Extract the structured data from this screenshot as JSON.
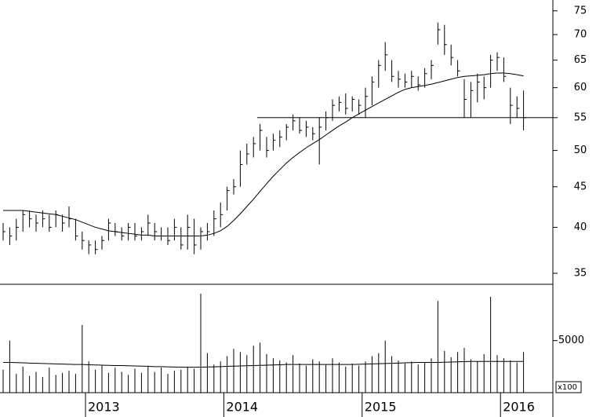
{
  "chart_data": [
    {
      "type": "ohlc",
      "color": "#000000",
      "log_scale": true,
      "categories": [
        null,
        null,
        null,
        null,
        null,
        null,
        null,
        null,
        null,
        null,
        null,
        null,
        null,
        "2013",
        null,
        null,
        null,
        null,
        null,
        null,
        null,
        null,
        null,
        null,
        null,
        null,
        null,
        null,
        null,
        null,
        null,
        null,
        null,
        null,
        "2014",
        null,
        null,
        null,
        null,
        null,
        null,
        null,
        null,
        null,
        null,
        null,
        null,
        null,
        null,
        null,
        null,
        null,
        null,
        null,
        null,
        "2015",
        null,
        null,
        null,
        null,
        null,
        null,
        null,
        null,
        null,
        null,
        null,
        null,
        null,
        null,
        null,
        null,
        null,
        null,
        null,
        null,
        "2016",
        null,
        null,
        null
      ],
      "high": [
        40.5,
        40,
        41,
        42,
        42,
        41.5,
        42,
        41.5,
        42,
        41.5,
        42.5,
        41,
        39.5,
        38.5,
        38.5,
        39,
        41,
        40.5,
        40,
        40.5,
        40.5,
        40,
        41.5,
        40.5,
        40,
        40,
        41,
        40,
        41.5,
        41,
        40,
        40.5,
        42,
        43,
        45,
        46,
        50,
        51,
        52,
        54,
        52,
        52.5,
        53,
        54,
        55.5,
        55,
        54.5,
        53.5,
        55,
        56,
        58,
        58.5,
        59,
        58.5,
        58,
        60,
        62,
        65,
        68.5,
        65,
        63,
        62.5,
        63,
        62,
        63.5,
        65,
        72.5,
        72,
        68,
        65,
        61.5,
        61,
        62.5,
        62,
        66,
        66.5,
        65.5,
        60,
        58.5,
        59.5
      ],
      "low": [
        38.5,
        38,
        38.5,
        39.5,
        40,
        39.5,
        40,
        39.5,
        40,
        39.5,
        40,
        38.5,
        37.5,
        37,
        37,
        37.5,
        38.5,
        39,
        38.5,
        38.5,
        38.5,
        38.5,
        39,
        38.5,
        38.5,
        38,
        38.5,
        37.5,
        37.5,
        37,
        37.5,
        38.5,
        39,
        40,
        42,
        44,
        45,
        48,
        49,
        50,
        49,
        50,
        50.5,
        51.5,
        53,
        52.5,
        52,
        51.5,
        48,
        53,
        54.5,
        56,
        55.5,
        56,
        55.5,
        55,
        57,
        60,
        63,
        61,
        60,
        60,
        60,
        59.5,
        60,
        61.5,
        68,
        66,
        64,
        62,
        55,
        55,
        57.5,
        58,
        60,
        63,
        61,
        54,
        55,
        53
      ],
      "close": [
        39.5,
        39,
        40,
        41.5,
        41,
        40.5,
        41,
        40,
        41.5,
        40.5,
        41,
        39,
        38.5,
        38,
        37.5,
        38.5,
        40.5,
        39.5,
        39,
        40,
        39,
        39.5,
        40.5,
        39.5,
        39,
        38.5,
        40,
        38,
        40,
        38,
        39.5,
        39.5,
        41,
        41.5,
        44.5,
        45,
        48,
        49.5,
        51,
        53,
        50,
        51.5,
        52,
        53.5,
        54.5,
        53,
        53.5,
        52.5,
        53.5,
        55,
        57,
        57.5,
        56.5,
        58,
        57,
        58.5,
        61,
        64,
        66,
        62,
        61.5,
        61,
        62,
        60.5,
        62.5,
        64,
        71,
        68,
        65.5,
        63,
        58,
        59.5,
        61,
        60,
        65,
        65.5,
        62,
        57,
        56.5,
        55
      ],
      "moving_average": [
        42,
        42,
        42,
        42,
        41.9,
        41.8,
        41.7,
        41.6,
        41.5,
        41.3,
        41.1,
        40.9,
        40.6,
        40.3,
        40,
        39.8,
        39.6,
        39.5,
        39.4,
        39.3,
        39.2,
        39.1,
        39.1,
        39,
        39,
        39,
        39,
        39,
        39,
        39,
        39,
        39.1,
        39.3,
        39.6,
        40.1,
        40.8,
        41.6,
        42.5,
        43.4,
        44.4,
        45.4,
        46.4,
        47.3,
        48.2,
        49,
        49.7,
        50.4,
        51,
        51.6,
        52.3,
        53,
        53.7,
        54.3,
        55,
        55.6,
        56.2,
        56.8,
        57.4,
        58,
        58.6,
        59.2,
        59.7,
        60,
        60.2,
        60.4,
        60.6,
        60.9,
        61.2,
        61.5,
        61.8,
        62,
        62.1,
        62.2,
        62.3,
        62.5,
        62.6,
        62.6,
        62.5,
        62.3,
        62.1
      ],
      "reference_line": 55,
      "ylim": [
        33.9,
        77.4
      ],
      "yticks": [
        35,
        40,
        45,
        50,
        55,
        60,
        65,
        70,
        75
      ]
    },
    {
      "type": "bar",
      "color": "#000000",
      "unit_label": "x100",
      "values": [
        2200,
        5000,
        1800,
        2500,
        1600,
        2000,
        1500,
        2400,
        1700,
        1900,
        2100,
        1800,
        6500,
        3000,
        2200,
        2600,
        1900,
        2400,
        2000,
        1700,
        2300,
        1900,
        2600,
        2000,
        2400,
        1800,
        2100,
        2200,
        2500,
        2300,
        9500,
        3800,
        2700,
        3000,
        3500,
        4200,
        3900,
        3600,
        4500,
        4800,
        3700,
        3300,
        3100,
        2900,
        3600,
        2800,
        2600,
        3200,
        3000,
        2700,
        3300,
        2900,
        2500,
        2800,
        2600,
        3000,
        3500,
        3800,
        5000,
        3500,
        3100,
        2800,
        3000,
        2700,
        2900,
        3300,
        8800,
        4000,
        3400,
        3900,
        4300,
        3200,
        3000,
        3700,
        9200,
        3600,
        3300,
        3100,
        2900,
        3900
      ],
      "moving_average": [
        2900,
        2900,
        2880,
        2860,
        2840,
        2820,
        2800,
        2780,
        2760,
        2740,
        2720,
        2700,
        2700,
        2680,
        2660,
        2640,
        2620,
        2600,
        2600,
        2580,
        2560,
        2540,
        2520,
        2500,
        2500,
        2480,
        2460,
        2450,
        2440,
        2440,
        2450,
        2460,
        2480,
        2500,
        2520,
        2540,
        2560,
        2580,
        2600,
        2620,
        2640,
        2660,
        2680,
        2700,
        2700,
        2700,
        2700,
        2700,
        2700,
        2700,
        2700,
        2700,
        2700,
        2700,
        2720,
        2740,
        2760,
        2780,
        2800,
        2820,
        2840,
        2860,
        2880,
        2900,
        2900,
        2900,
        2900,
        2920,
        2940,
        2960,
        2980,
        3000,
        3000,
        3000,
        3000,
        3000,
        3000,
        3000,
        3000,
        3000
      ],
      "ylim": [
        0,
        10400
      ],
      "yticks": [
        5000
      ]
    }
  ]
}
